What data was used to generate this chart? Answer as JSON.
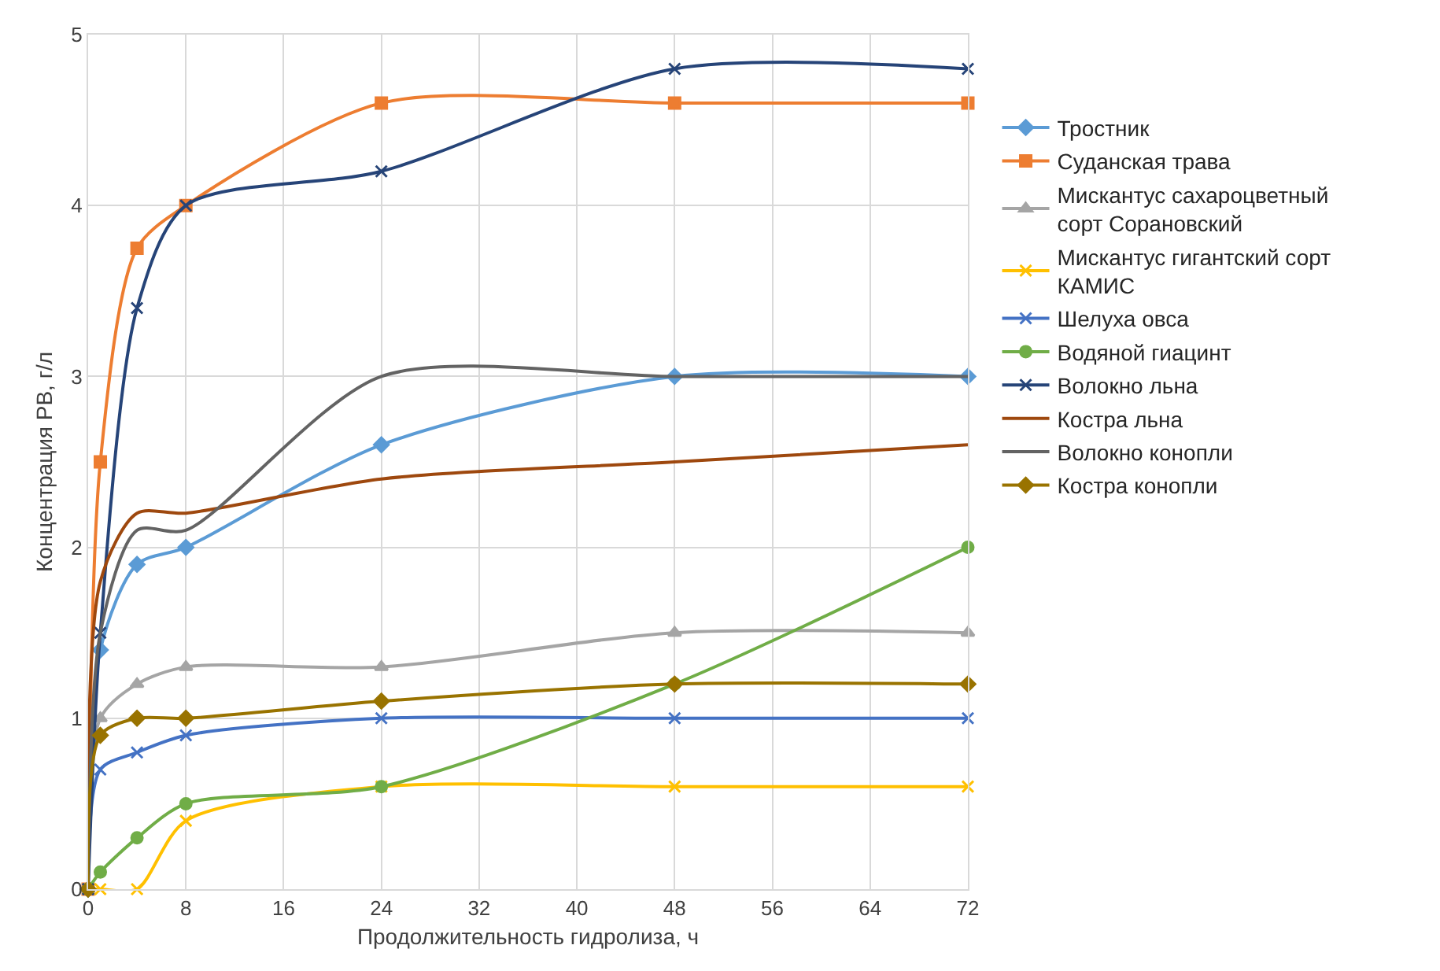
{
  "chart_data": {
    "type": "line",
    "xlabel": "Продолжительность гидролиза, ч",
    "ylabel": "Концентрация РВ, г/л",
    "x": [
      0,
      1,
      4,
      8,
      24,
      48,
      72
    ],
    "xlim": [
      0,
      72
    ],
    "xticks": [
      0,
      8,
      16,
      24,
      32,
      40,
      48,
      56,
      64,
      72
    ],
    "ylim": [
      0,
      5
    ],
    "yticks": [
      0,
      1,
      2,
      3,
      4,
      5
    ],
    "grid": true,
    "legend": "right",
    "series": [
      {
        "name": "Тростник",
        "color": "#5b9bd5",
        "marker": "diamond",
        "values": [
          0,
          1.4,
          1.9,
          2.0,
          2.6,
          3.0,
          3.0
        ]
      },
      {
        "name": "Суданская трава",
        "color": "#ed7d31",
        "marker": "square",
        "values": [
          0,
          2.5,
          3.75,
          4.0,
          4.6,
          4.6,
          4.6
        ]
      },
      {
        "name": "Мискантус сахароцветный сорт Сорановский",
        "color": "#a5a5a5",
        "marker": "triangle",
        "values": [
          0,
          1.0,
          1.2,
          1.3,
          1.3,
          1.5,
          1.5
        ]
      },
      {
        "name": "Мискантус гигантский сорт КАМИС",
        "color": "#ffc000",
        "marker": "cross",
        "values": [
          0,
          0,
          0,
          0.4,
          0.6,
          0.6,
          0.6
        ]
      },
      {
        "name": "Шелуха овса",
        "color": "#4472c4",
        "marker": "cross",
        "values": [
          0,
          0.7,
          0.8,
          0.9,
          1.0,
          1.0,
          1.0
        ]
      },
      {
        "name": "Водяной гиацинт",
        "color": "#70ad47",
        "marker": "circle",
        "values": [
          0,
          0.1,
          0.3,
          0.5,
          0.6,
          1.2,
          2.0
        ]
      },
      {
        "name": "Волокно льна",
        "color": "#264478",
        "marker": "cross",
        "values": [
          0,
          1.5,
          3.4,
          4.0,
          4.2,
          4.8,
          4.8
        ]
      },
      {
        "name": "Костра льна",
        "color": "#9e480e",
        "marker": "none",
        "values": [
          0,
          1.8,
          2.2,
          2.2,
          2.4,
          2.5,
          2.6
        ]
      },
      {
        "name": "Волокно конопли",
        "color": "#636363",
        "marker": "none",
        "values": [
          0,
          1.5,
          2.1,
          2.1,
          3.0,
          3.0,
          3.0
        ]
      },
      {
        "name": "Костра конопли",
        "color": "#997300",
        "marker": "diamond",
        "values": [
          0,
          0.9,
          1.0,
          1.0,
          1.1,
          1.2,
          1.2
        ]
      }
    ]
  }
}
